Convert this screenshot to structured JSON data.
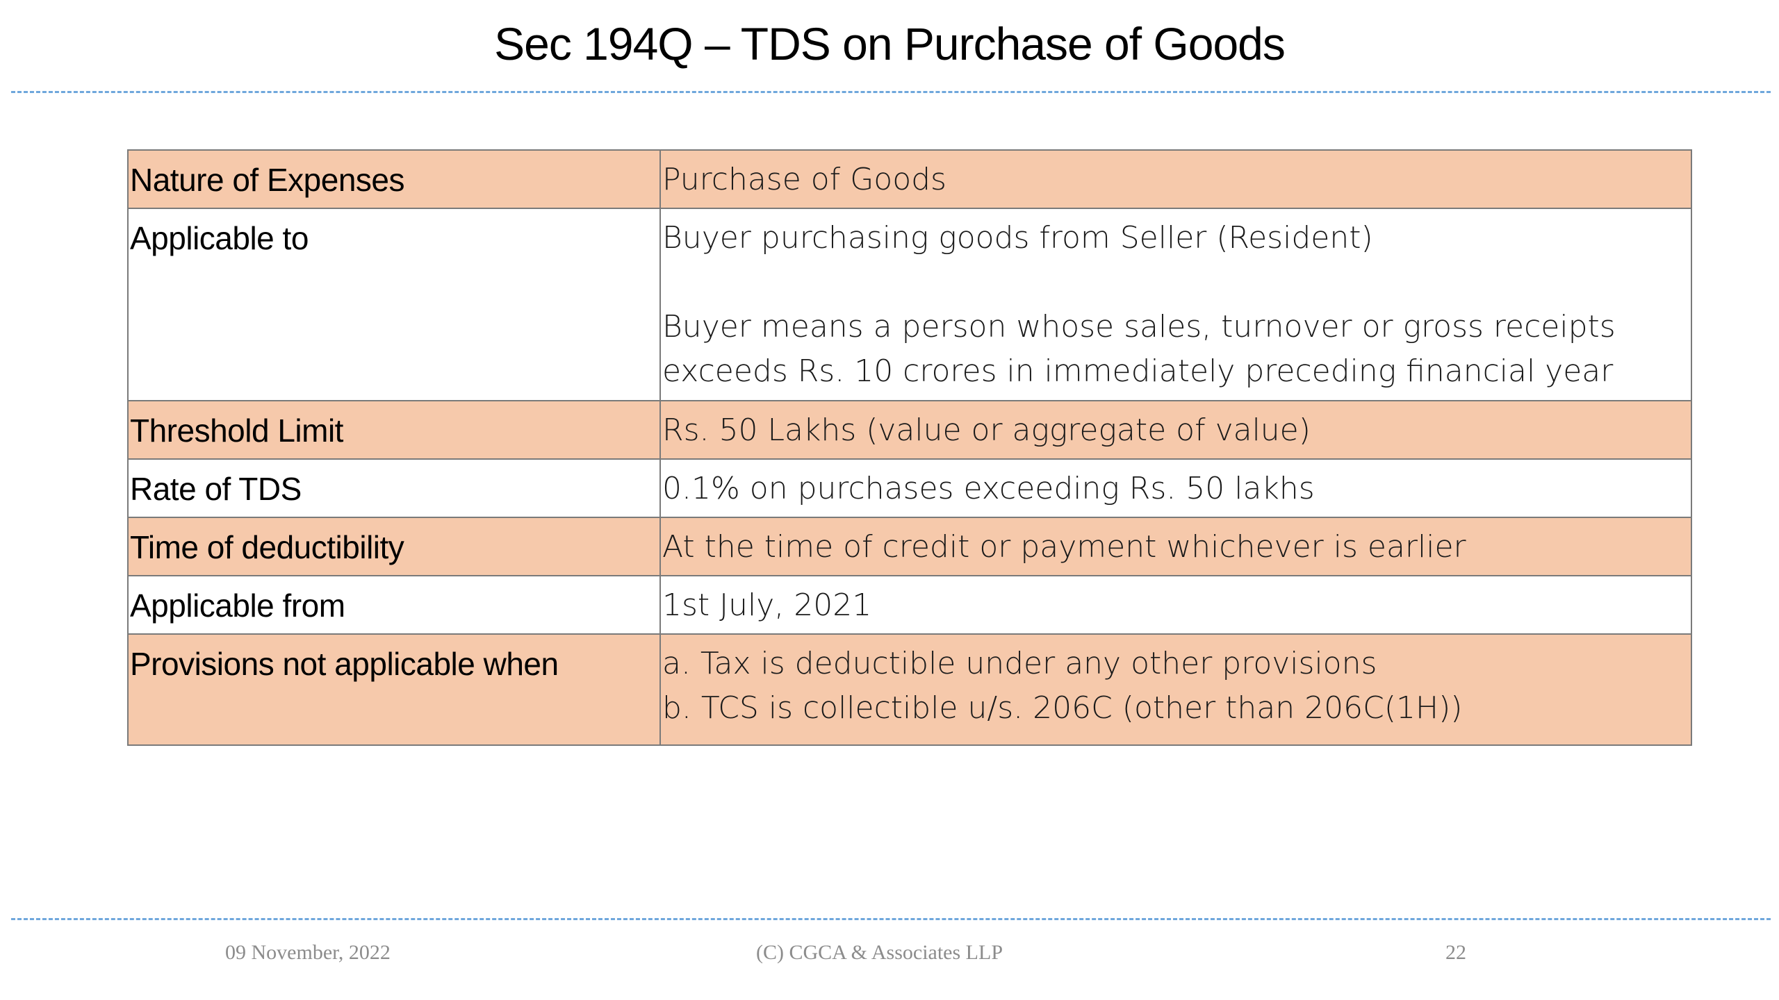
{
  "slide": {
    "title": "Sec 194Q – TDS on Purchase of Goods"
  },
  "table": {
    "rows": [
      {
        "label": "Nature of Expenses",
        "value": [
          "Purchase of Goods"
        ]
      },
      {
        "label": "Applicable to",
        "value": [
          "Buyer purchasing goods from Seller (Resident)",
          "",
          "Buyer means a person whose sales, turnover or gross receipts",
          "exceeds Rs. 10 crores in immediately preceding financial year"
        ]
      },
      {
        "label": "Threshold Limit",
        "value": [
          "Rs. 50 Lakhs (value or aggregate of value)"
        ]
      },
      {
        "label": "Rate of TDS",
        "value": [
          "0.1% on purchases exceeding Rs. 50 lakhs"
        ]
      },
      {
        "label": "Time of deductibility",
        "value": [
          "At the time of credit or payment whichever is earlier"
        ]
      },
      {
        "label": "Applicable from",
        "value": [
          "1st July, 2021"
        ]
      },
      {
        "label": "Provisions not applicable when",
        "value": [
          "a. Tax is deductible under any other provisions",
          "b. TCS is collectible u/s. 206C (other than 206C(1H))"
        ]
      }
    ]
  },
  "footer": {
    "date": "09 November, 2022",
    "copyright": "(C) CGCA & Associates LLP",
    "page_number": "22"
  },
  "colors": {
    "shaded_row": "#f6c9ab",
    "divider": "#6fa7dc",
    "footer_text": "#8c8c8c"
  }
}
